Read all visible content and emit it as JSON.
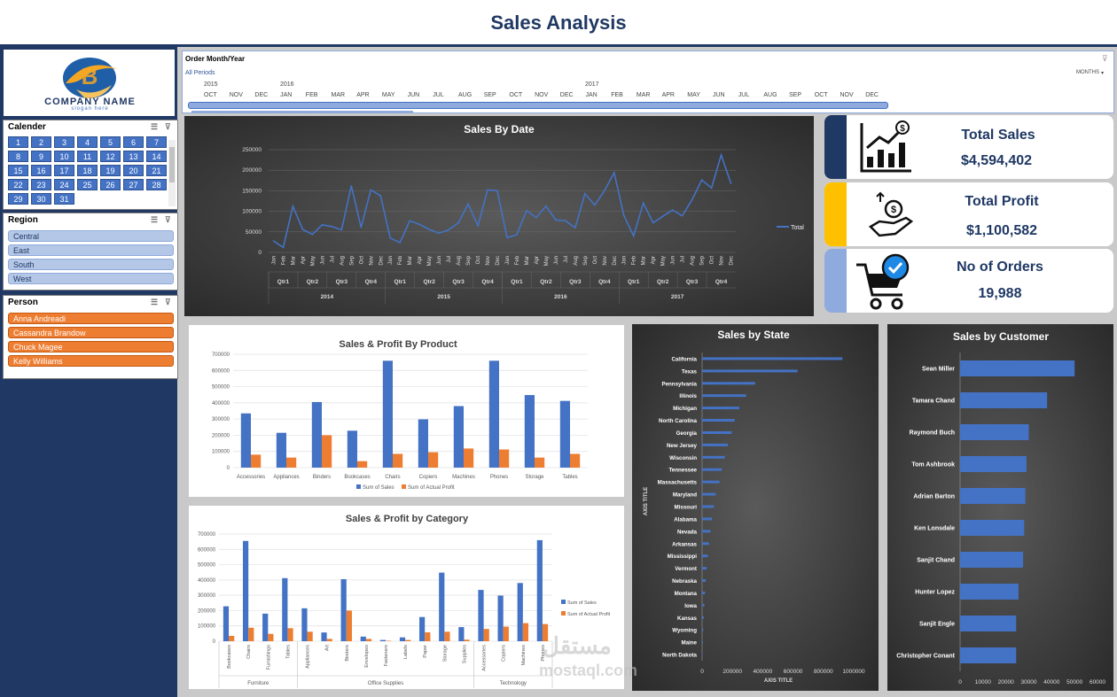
{
  "page_title": "Sales Analysis",
  "logo": {
    "company": "COMPANY NAME",
    "slogan": "slogan here"
  },
  "colors": {
    "navy": "#1f3864",
    "blue": "#4472c4",
    "orange": "#ed7d31",
    "gold": "#ffc000",
    "light_blue": "#8faadc"
  },
  "timeline": {
    "header": "Order Month/Year",
    "selection": "All Periods",
    "level": "MONTHS",
    "years": [
      "2015",
      "2016",
      "2017"
    ],
    "months": [
      "OCT",
      "NOV",
      "DEC",
      "JAN",
      "FEB",
      "MAR",
      "APR",
      "MAY",
      "JUN",
      "JUL",
      "AUG",
      "SEP",
      "OCT",
      "NOV",
      "DEC",
      "JAN",
      "FEB",
      "MAR",
      "APR",
      "MAY",
      "JUN",
      "JUL",
      "AUG",
      "SEP",
      "OCT",
      "NOV",
      "DEC"
    ]
  },
  "slicers": {
    "calendar": {
      "title": "Calender",
      "days": [
        "1",
        "2",
        "3",
        "4",
        "5",
        "6",
        "7",
        "8",
        "9",
        "10",
        "11",
        "12",
        "13",
        "14",
        "15",
        "16",
        "17",
        "18",
        "19",
        "20",
        "21",
        "22",
        "23",
        "24",
        "25",
        "26",
        "27",
        "28",
        "29",
        "30",
        "31"
      ]
    },
    "region": {
      "title": "Region",
      "items": [
        "Central",
        "East",
        "South",
        "West"
      ]
    },
    "person": {
      "title": "Person",
      "items": [
        "Anna Andreadi",
        "Cassandra Brandow",
        "Chuck Magee",
        "Kelly Williams"
      ]
    }
  },
  "kpis": [
    {
      "label": "Total Sales",
      "value": "$4,594,402",
      "icon": "sales-growth-icon",
      "band": "#1f3864"
    },
    {
      "label": "Total Profit",
      "value": "$1,100,582",
      "icon": "money-hand-icon",
      "band": "#ffc000"
    },
    {
      "label": "No of Orders",
      "value": "19,988",
      "icon": "shopping-cart-icon",
      "band": "#8faadc"
    }
  ],
  "watermark": {
    "arabic": "مستقل",
    "latin": "mostaql.com"
  },
  "chart_data": [
    {
      "id": "sales-by-date",
      "type": "line",
      "title": "Sales By Date",
      "years": [
        "2014",
        "2015",
        "2016",
        "2017"
      ],
      "quarters": [
        "Qtr1",
        "Qtr2",
        "Qtr3",
        "Qtr4"
      ],
      "months": [
        "Jan",
        "Feb",
        "Mar",
        "Apr",
        "May",
        "Jun",
        "Jul",
        "Aug",
        "Sep",
        "Oct",
        "Nov",
        "Dec"
      ],
      "yticks": [
        "0",
        "50000",
        "100000",
        "150000",
        "200000",
        "250000"
      ],
      "ylim": [
        0,
        250000
      ],
      "series": [
        {
          "name": "Total",
          "values": [
            28000,
            12000,
            112000,
            56000,
            44000,
            67000,
            63000,
            55000,
            162000,
            61000,
            152000,
            138000,
            35000,
            24000,
            77000,
            68000,
            56000,
            47000,
            55000,
            72000,
            118000,
            65000,
            152000,
            150000,
            36000,
            43000,
            102000,
            85000,
            113000,
            79000,
            77000,
            60000,
            143000,
            115000,
            150000,
            194000,
            90000,
            40000,
            120000,
            72000,
            88000,
            103000,
            89000,
            128000,
            176000,
            157000,
            237000,
            168000
          ]
        }
      ],
      "legend": "right"
    },
    {
      "id": "sales-profit-product",
      "type": "bar",
      "title": "Sales & Profit By Product",
      "categories": [
        "Accessories",
        "Appliances",
        "Binders",
        "Bookcases",
        "Chairs",
        "Copiers",
        "Machines",
        "Phones",
        "Storage",
        "Tables"
      ],
      "yticks": [
        "0",
        "100000",
        "200000",
        "300000",
        "400000",
        "500000",
        "600000",
        "700000"
      ],
      "ylim": [
        0,
        700000
      ],
      "series": [
        {
          "name": "Sum of Sales",
          "values": [
            335000,
            215000,
            405000,
            228000,
            660000,
            298000,
            380000,
            660000,
            448000,
            412000
          ]
        },
        {
          "name": "Sum of Actual Profit",
          "values": [
            80000,
            62000,
            200000,
            40000,
            85000,
            95000,
            118000,
            112000,
            62000,
            85000
          ]
        }
      ],
      "legend": "bottom"
    },
    {
      "id": "sales-profit-category",
      "type": "bar",
      "title": "Sales & Profit by Category",
      "groups": [
        {
          "name": "Furniture",
          "categories": [
            "Bookcases",
            "Chairs",
            "Furnishings",
            "Tables"
          ]
        },
        {
          "name": "Office Supplies",
          "categories": [
            "Appliances",
            "Art",
            "Binders",
            "Envelopes",
            "Fasteners",
            "Labels",
            "Paper",
            "Storage",
            "Supplies"
          ]
        },
        {
          "name": "Technology",
          "categories": [
            "Accessories",
            "Copiers",
            "Machines",
            "Phones"
          ]
        }
      ],
      "yticks": [
        "0",
        "100000",
        "200000",
        "300000",
        "400000",
        "500000",
        "600000",
        "700000"
      ],
      "ylim": [
        0,
        700000
      ],
      "series": [
        {
          "name": "Sum of Sales",
          "values": [
            228000,
            655000,
            180000,
            412000,
            215000,
            57000,
            405000,
            30000,
            8000,
            25000,
            158000,
            448000,
            92000,
            335000,
            298000,
            380000,
            660000
          ]
        },
        {
          "name": "Sum of Actual Profit",
          "values": [
            35000,
            88000,
            48000,
            85000,
            62000,
            15000,
            200000,
            15000,
            3000,
            8000,
            58000,
            62000,
            10000,
            80000,
            95000,
            118000,
            112000
          ]
        }
      ],
      "legend": "right"
    },
    {
      "id": "sales-by-state",
      "type": "bar",
      "orientation": "horizontal",
      "title": "Sales by State",
      "xlabel": "AXIS TITLE",
      "ylabel": "AXIS TITLE",
      "categories": [
        "California",
        "Texas",
        "Pennsylvania",
        "Illinois",
        "Michigan",
        "North Carolina",
        "Georgia",
        "New Jersey",
        "Wisconsin",
        "Tennessee",
        "Massachusetts",
        "Maryland",
        "Missouri",
        "Alabama",
        "Nevada",
        "Arkansas",
        "Mississippi",
        "Vermont",
        "Nebraska",
        "Montana",
        "Iowa",
        "Kansas",
        "Wyoming",
        "Maine",
        "North Dakota"
      ],
      "xticks": [
        "0",
        "200000",
        "400000",
        "600000",
        "800000",
        "1000000"
      ],
      "xlim": [
        0,
        1000000
      ],
      "values": [
        925000,
        630000,
        350000,
        290000,
        245000,
        215000,
        195000,
        170000,
        150000,
        130000,
        115000,
        90000,
        78000,
        65000,
        55000,
        45000,
        38000,
        30000,
        24000,
        19000,
        15000,
        11000,
        8000,
        5000,
        3000
      ]
    },
    {
      "id": "sales-by-customer",
      "type": "bar",
      "orientation": "horizontal",
      "title": "Sales by Customer",
      "categories": [
        "Sean Miller",
        "Tamara Chand",
        "Raymond Buch",
        "Tom Ashbrook",
        "Adrian Barton",
        "Ken Lonsdale",
        "Sanjit Chand",
        "Hunter Lopez",
        "Sanjit Engle",
        "Christopher Conant"
      ],
      "xticks": [
        "0",
        "10000",
        "20000",
        "30000",
        "40000",
        "50000",
        "60000"
      ],
      "xlim": [
        0,
        60000
      ],
      "values": [
        50000,
        38000,
        30000,
        29000,
        28500,
        28000,
        27500,
        25500,
        24500,
        24500
      ]
    }
  ]
}
